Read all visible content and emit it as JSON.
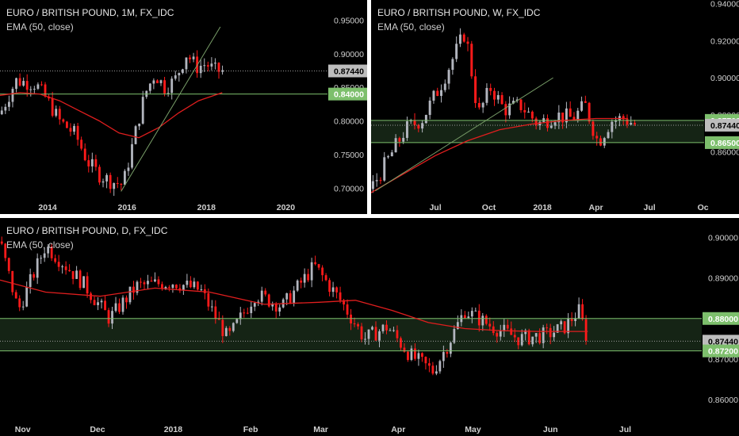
{
  "colors": {
    "background": "#000000",
    "up_candle": "#b2b5be",
    "down_candle": "#ff1a1a",
    "ema": "#e01e1e",
    "level": "#7dbf6c",
    "zone_fill": "#152415",
    "trendline": "#7aa06a",
    "last_price_box": "#bdbdbd",
    "axis_text": "#cfcfcf"
  },
  "icons": [],
  "chart_data": [
    {
      "panel": "monthly",
      "type": "candlestick",
      "title": "EURO / BRITISH POUND, 1M, FX_IDC",
      "subtitle": "EMA (50, close)",
      "x_ticks": [
        {
          "label": "2014",
          "x": 2014.0
        },
        {
          "label": "2016",
          "x": 2016.0
        },
        {
          "label": "2018",
          "x": 2018.0
        },
        {
          "label": "2020",
          "x": 2020.0
        }
      ],
      "xlim": [
        2012.8,
        2021.05
      ],
      "y_ticks": [
        {
          "label": "0.95000",
          "value": 0.95
        },
        {
          "label": "0.90000",
          "value": 0.9
        },
        {
          "label": "0.85000",
          "value": 0.85
        },
        {
          "label": "0.80000",
          "value": 0.8
        },
        {
          "label": "0.75000",
          "value": 0.75
        },
        {
          "label": "0.70000",
          "value": 0.7
        }
      ],
      "ylim": [
        0.685,
        0.98
      ],
      "price_tags": [
        {
          "label": "0.87440",
          "value": 0.8744,
          "kind": "last"
        },
        {
          "label": "0.84000",
          "value": 0.84,
          "kind": "level"
        }
      ],
      "levels": [
        0.84
      ],
      "dotted_last": 0.8744,
      "trendline": {
        "x": [
          2015.85,
          2018.35
        ],
        "y": [
          0.695,
          0.94
        ]
      },
      "ema": {
        "x": [
          2012.8,
          2013.3,
          2013.8,
          2014.3,
          2014.8,
          2015.3,
          2015.8,
          2016.3,
          2016.8,
          2017.3,
          2017.8,
          2018.4
        ],
        "y": [
          0.838,
          0.842,
          0.84,
          0.83,
          0.815,
          0.8,
          0.782,
          0.775,
          0.79,
          0.812,
          0.83,
          0.842
        ]
      },
      "series_path": {
        "x": [
          2012.8,
          2013.2,
          2013.7,
          2014.0,
          2014.3,
          2014.7,
          2015.0,
          2015.3,
          2015.6,
          2015.9,
          2016.2,
          2016.45,
          2016.7,
          2016.95,
          2017.2,
          2017.5,
          2017.75,
          2018.0,
          2018.2,
          2018.45
        ],
        "y": [
          0.81,
          0.86,
          0.855,
          0.83,
          0.8,
          0.78,
          0.74,
          0.72,
          0.71,
          0.705,
          0.78,
          0.84,
          0.87,
          0.85,
          0.86,
          0.9,
          0.88,
          0.885,
          0.875,
          0.874
        ]
      }
    },
    {
      "panel": "weekly",
      "type": "candlestick",
      "title": "EURO / BRITISH POUND, W, FX_IDC",
      "subtitle": "EMA (50, close)",
      "x_ticks": [
        {
          "label": "Jul",
          "x": 2017.5
        },
        {
          "label": "Oct",
          "x": 2017.75
        },
        {
          "label": "2018",
          "x": 2018.0
        },
        {
          "label": "Apr",
          "x": 2018.25
        },
        {
          "label": "Jul",
          "x": 2018.5
        },
        {
          "label": "Oc",
          "x": 2018.75
        }
      ],
      "xlim": [
        2017.2,
        2018.755
      ],
      "y_ticks": [
        {
          "label": "0.94000",
          "value": 0.94
        },
        {
          "label": "0.92000",
          "value": 0.92
        },
        {
          "label": "0.90000",
          "value": 0.9
        },
        {
          "label": "0.88000",
          "value": 0.88
        },
        {
          "label": "0.86000",
          "value": 0.86
        }
      ],
      "ylim": [
        0.835,
        0.942
      ],
      "price_tags": [
        {
          "label": "0.87700",
          "value": 0.877,
          "kind": "level"
        },
        {
          "label": "0.87440",
          "value": 0.8744,
          "kind": "last"
        },
        {
          "label": "0.86500",
          "value": 0.865,
          "kind": "level"
        }
      ],
      "levels": [
        0.877,
        0.865
      ],
      "zone": [
        0.865,
        0.877
      ],
      "trendline": {
        "x": [
          2017.22,
          2018.05
        ],
        "y": [
          0.839,
          0.9
        ]
      },
      "ema": {
        "x": [
          2017.2,
          2017.35,
          2017.5,
          2017.65,
          2017.8,
          2017.95,
          2018.1,
          2018.25,
          2018.4
        ],
        "y": [
          0.838,
          0.848,
          0.858,
          0.866,
          0.872,
          0.875,
          0.877,
          0.878,
          0.878
        ]
      },
      "series_path": {
        "x": [
          2017.2,
          2017.28,
          2017.36,
          2017.44,
          2017.52,
          2017.58,
          2017.64,
          2017.7,
          2017.76,
          2017.82,
          2017.9,
          2017.98,
          2018.06,
          2018.14,
          2018.2,
          2018.26,
          2018.32,
          2018.38,
          2018.44
        ],
        "y": [
          0.84,
          0.856,
          0.872,
          0.878,
          0.895,
          0.91,
          0.925,
          0.88,
          0.895,
          0.883,
          0.885,
          0.875,
          0.88,
          0.878,
          0.885,
          0.865,
          0.877,
          0.878,
          0.8744
        ]
      }
    },
    {
      "panel": "daily",
      "type": "candlestick",
      "title": "EURO / BRITISH POUND, D, FX_IDC",
      "subtitle": "EMA (50, close)",
      "x_ticks": [
        {
          "label": "Nov",
          "x": 2017.835
        },
        {
          "label": "Dec",
          "x": 2017.917
        },
        {
          "label": "2018",
          "x": 2018.0
        },
        {
          "label": "Feb",
          "x": 2018.085
        },
        {
          "label": "Mar",
          "x": 2018.162
        },
        {
          "label": "Apr",
          "x": 2018.247
        },
        {
          "label": "May",
          "x": 2018.329
        },
        {
          "label": "Jun",
          "x": 2018.414
        },
        {
          "label": "Jul",
          "x": 2018.496
        }
      ],
      "xlim": [
        2017.81,
        2018.58
      ],
      "y_ticks": [
        {
          "label": "0.90000",
          "value": 0.9
        },
        {
          "label": "0.89000",
          "value": 0.89
        },
        {
          "label": "0.88000",
          "value": 0.88
        },
        {
          "label": "0.87000",
          "value": 0.87
        },
        {
          "label": "0.86000",
          "value": 0.86
        }
      ],
      "ylim": [
        0.8555,
        0.9048
      ],
      "price_tags": [
        {
          "label": "0.88000",
          "value": 0.88,
          "kind": "level"
        },
        {
          "label": "0.87440",
          "value": 0.8744,
          "kind": "last"
        },
        {
          "label": "0.87200",
          "value": 0.872,
          "kind": "level"
        }
      ],
      "levels": [
        0.88,
        0.872
      ],
      "zone": [
        0.872,
        0.88
      ],
      "ema": {
        "x": [
          2017.81,
          2017.86,
          2017.92,
          2017.98,
          2018.04,
          2018.1,
          2018.16,
          2018.2,
          2018.24,
          2018.28,
          2018.32,
          2018.36,
          2018.4,
          2018.44,
          2018.455
        ],
        "y": [
          0.8895,
          0.8865,
          0.8855,
          0.8875,
          0.8865,
          0.8835,
          0.884,
          0.8845,
          0.882,
          0.879,
          0.8775,
          0.877,
          0.8768,
          0.8768,
          0.8768
        ]
      },
      "series_path": {
        "x": [
          2017.81,
          2017.83,
          2017.86,
          2017.9,
          2017.93,
          2017.96,
          2018.0,
          2018.03,
          2018.06,
          2018.09,
          2018.12,
          2018.155,
          2018.185,
          2018.21,
          2018.235,
          2018.26,
          2018.285,
          2018.3,
          2018.32,
          2018.35,
          2018.38,
          2018.41,
          2018.43,
          2018.445,
          2018.455
        ],
        "y": [
          0.899,
          0.882,
          0.898,
          0.889,
          0.88,
          0.888,
          0.889,
          0.887,
          0.875,
          0.886,
          0.883,
          0.893,
          0.884,
          0.875,
          0.878,
          0.871,
          0.867,
          0.873,
          0.882,
          0.878,
          0.875,
          0.876,
          0.878,
          0.882,
          0.8744
        ]
      }
    }
  ]
}
